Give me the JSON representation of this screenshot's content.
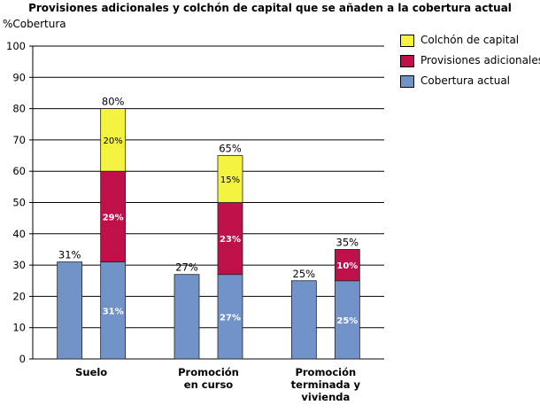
{
  "chart_data": {
    "type": "bar",
    "title": "Provisiones adicionales y colchón de capital  que se añaden a la cobertura actual",
    "ylabel": "%Cobertura",
    "xlabel": "",
    "ylim": [
      0,
      100
    ],
    "yticks": [
      0,
      10,
      20,
      30,
      40,
      50,
      60,
      70,
      80,
      90,
      100
    ],
    "grid": true,
    "legend_position": "top-right",
    "categories": [
      [
        "Suelo"
      ],
      [
        "Promoción",
        "en curso"
      ],
      [
        "Promoción",
        "terminada y",
        "vivienda"
      ]
    ],
    "series": [
      {
        "name": "Cobertura actual",
        "color": "#7293c8",
        "values": [
          31,
          27,
          25
        ]
      },
      {
        "name": "Provisiones adicionales",
        "color": "#c0104a",
        "values": [
          29,
          23,
          10
        ]
      },
      {
        "name": "Colchón de capital",
        "color": "#f4f440",
        "values": [
          20,
          15,
          0
        ]
      }
    ],
    "legend_order": [
      "Colchón de capital",
      "Provisiones adicionales",
      "Cobertura actual"
    ],
    "standalone_bar_labels": [
      "31%",
      "27%",
      "25%"
    ],
    "stacked_total_labels": [
      "80%",
      "65%",
      "35%"
    ],
    "segment_labels": [
      [
        "31%",
        "29%",
        "20%"
      ],
      [
        "27%",
        "23%",
        "15%"
      ],
      [
        "25%",
        "10%",
        ""
      ]
    ]
  }
}
